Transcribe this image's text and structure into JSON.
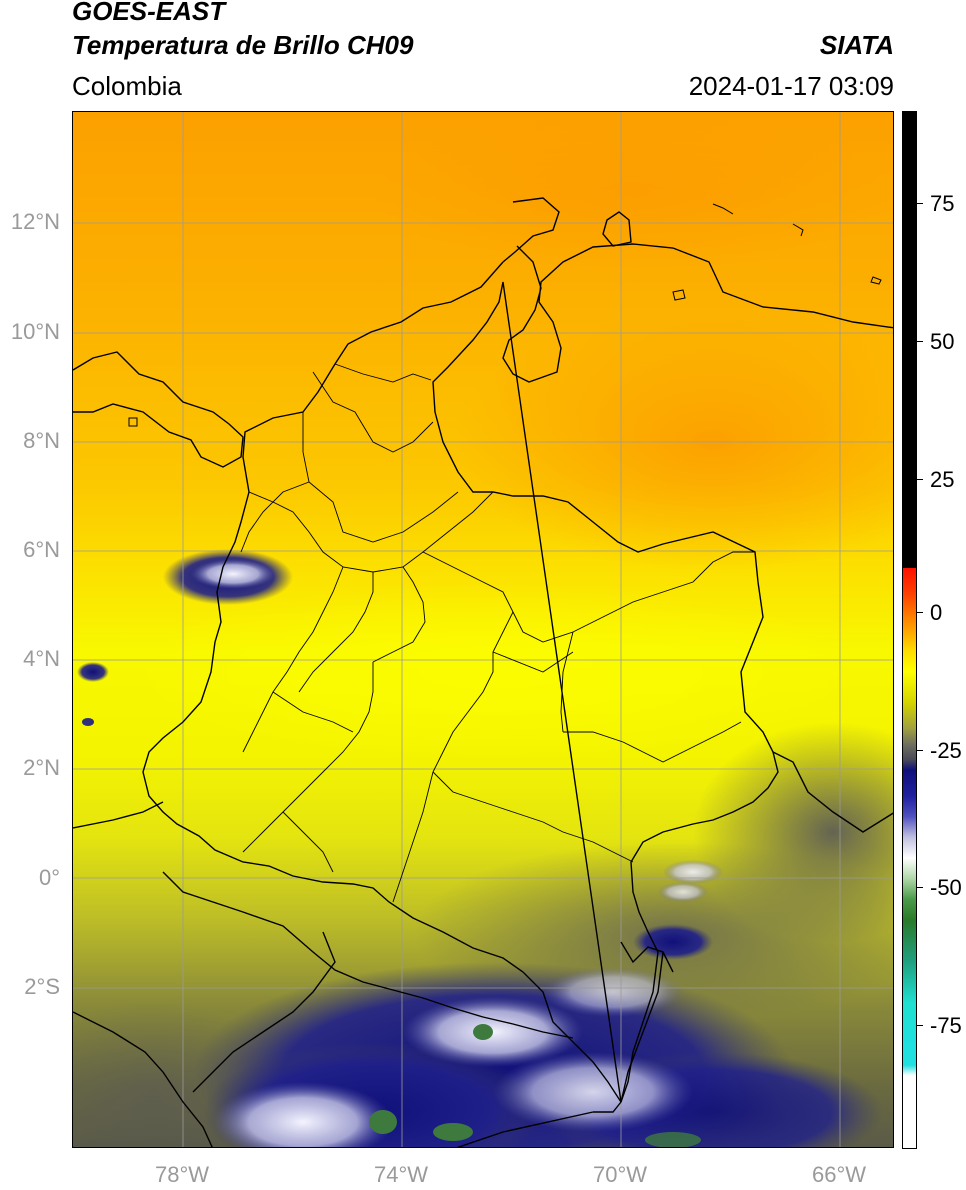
{
  "header": {
    "title_line1": "GOES-EAST",
    "title_line2": "Temperatura de Brillo CH09",
    "brand": "SIATA",
    "region": "Colombia",
    "datetime": "2024-01-17 03:09"
  },
  "axes": {
    "lat_labels": [
      "12°N",
      "10°N",
      "8°N",
      "6°N",
      "4°N",
      "2°N",
      "0°",
      "2°S"
    ],
    "lon_labels": [
      "78°W",
      "74°W",
      "70°W",
      "66°W"
    ]
  },
  "colorbar": {
    "tick_labels": [
      "75",
      "50",
      "25",
      "0",
      "-25",
      "-50",
      "-75"
    ],
    "colors": {
      "black": "#000000",
      "red": "#ff2000",
      "orange": "#ff9c00",
      "yellow": "#ffff00",
      "olive": "#8c8c30",
      "gray": "#4e4e58",
      "navy": "#10107a",
      "white": "#ffffff",
      "green": "#2a7a2a",
      "cyan": "#20e0d0"
    }
  },
  "map_colors": {
    "orange": "#fca800",
    "yellow": "#f8f800",
    "olive": "#9a9a3c",
    "dark": "#5a5a50",
    "navy": "#14147c",
    "white": "#e8e8f4",
    "green": "#3e7a3e",
    "border": "#000000",
    "grid": "#9a9a9a"
  }
}
